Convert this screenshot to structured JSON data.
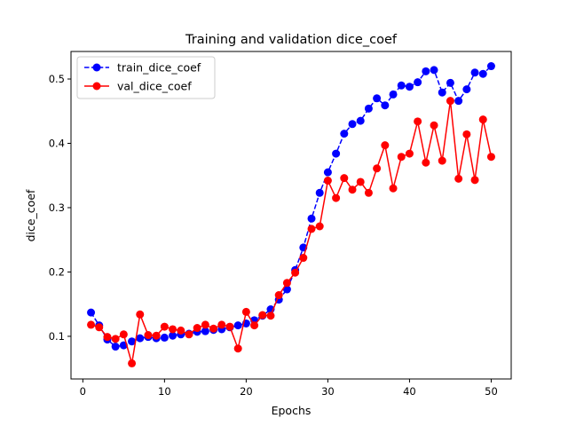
{
  "chart_data": {
    "type": "line",
    "title": "Training and validation dice_coef",
    "xlabel": "Epochs",
    "ylabel": "dice_coef",
    "xlim": [
      -1.45,
      52.45
    ],
    "ylim": [
      0.0337,
      0.5428
    ],
    "x_ticks": [
      0,
      10,
      20,
      30,
      40,
      50
    ],
    "y_ticks": [
      0.1,
      0.2,
      0.3,
      0.4,
      0.5
    ],
    "x_tick_labels": [
      "0",
      "10",
      "20",
      "30",
      "40",
      "50"
    ],
    "y_tick_labels": [
      "0.1",
      "0.2",
      "0.3",
      "0.4",
      "0.5"
    ],
    "grid": false,
    "legend_position": "upper-left",
    "x": [
      1,
      2,
      3,
      4,
      5,
      6,
      7,
      8,
      9,
      10,
      11,
      12,
      13,
      14,
      15,
      16,
      17,
      18,
      19,
      20,
      21,
      22,
      23,
      24,
      25,
      26,
      27,
      28,
      29,
      30,
      31,
      32,
      33,
      34,
      35,
      36,
      37,
      38,
      39,
      40,
      41,
      42,
      43,
      44,
      45,
      46,
      47,
      48,
      49,
      50
    ],
    "series": [
      {
        "name": "train_dice_coef",
        "color": "#0000ff",
        "line_style": "dashed",
        "marker": "circle",
        "values": [
          0.137,
          0.117,
          0.095,
          0.084,
          0.086,
          0.092,
          0.097,
          0.099,
          0.097,
          0.098,
          0.101,
          0.103,
          0.104,
          0.107,
          0.108,
          0.11,
          0.111,
          0.114,
          0.117,
          0.12,
          0.125,
          0.132,
          0.142,
          0.157,
          0.173,
          0.203,
          0.238,
          0.283,
          0.323,
          0.355,
          0.384,
          0.415,
          0.43,
          0.435,
          0.454,
          0.47,
          0.459,
          0.476,
          0.49,
          0.488,
          0.495,
          0.512,
          0.514,
          0.479,
          0.494,
          0.466,
          0.484,
          0.51,
          0.508,
          0.52
        ]
      },
      {
        "name": "val_dice_coef",
        "color": "#ff0000",
        "line_style": "solid",
        "marker": "circle",
        "values": [
          0.118,
          0.114,
          0.099,
          0.096,
          0.103,
          0.058,
          0.134,
          0.102,
          0.101,
          0.115,
          0.111,
          0.109,
          0.103,
          0.113,
          0.118,
          0.112,
          0.118,
          0.115,
          0.081,
          0.138,
          0.117,
          0.133,
          0.132,
          0.164,
          0.183,
          0.199,
          0.222,
          0.267,
          0.271,
          0.342,
          0.315,
          0.346,
          0.328,
          0.34,
          0.323,
          0.361,
          0.397,
          0.33,
          0.379,
          0.384,
          0.434,
          0.37,
          0.428,
          0.373,
          0.466,
          0.345,
          0.414,
          0.343,
          0.437,
          0.379
        ]
      }
    ]
  }
}
